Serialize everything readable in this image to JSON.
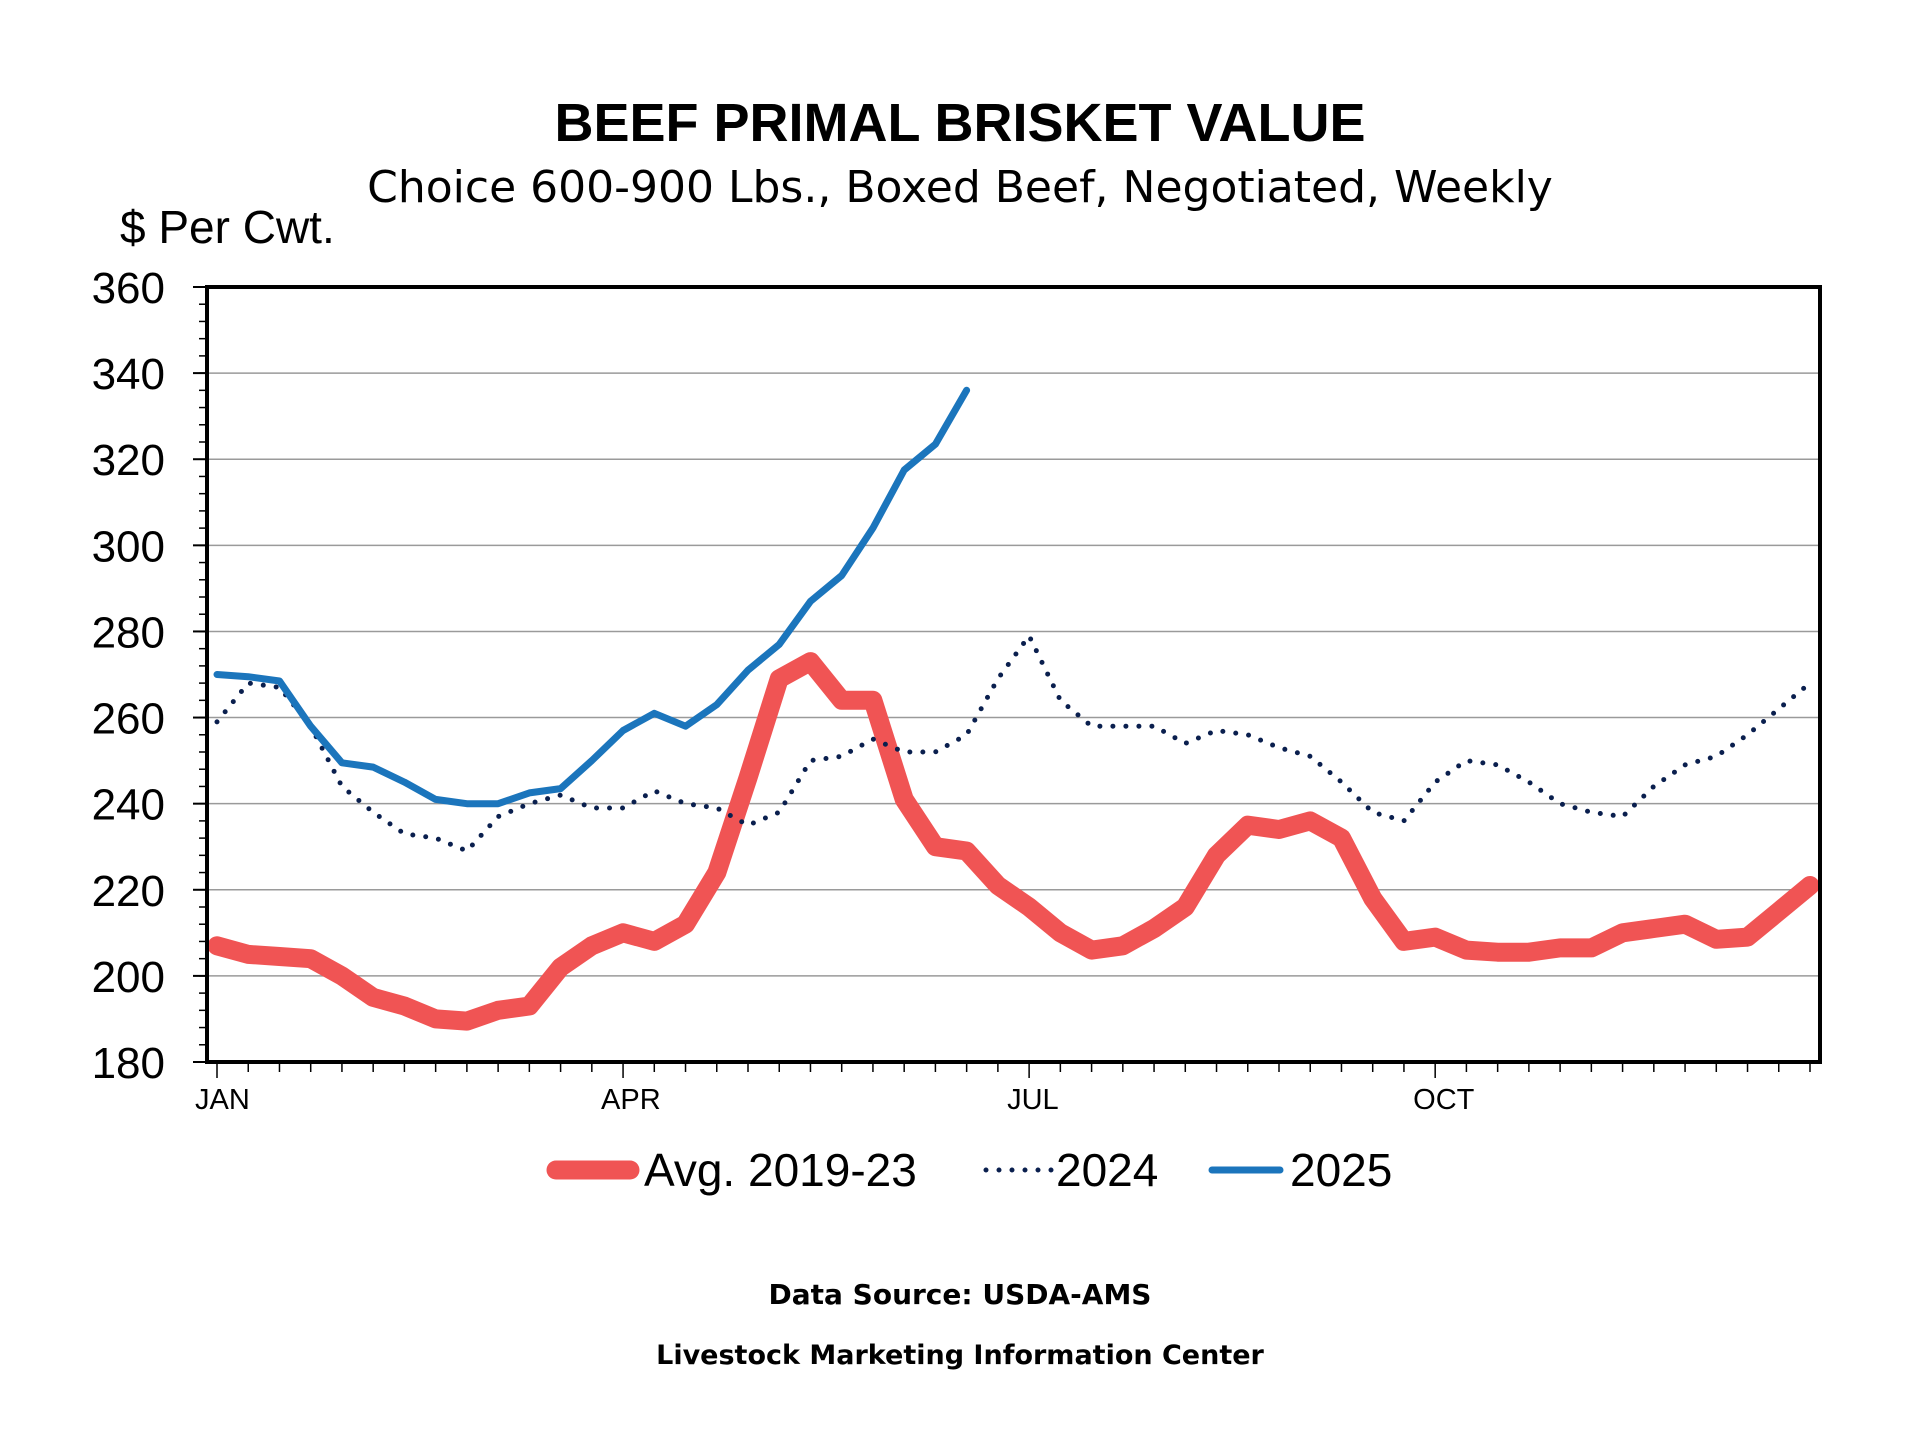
{
  "chart_data": {
    "type": "line",
    "title": "BEEF PRIMAL BRISKET VALUE",
    "subtitle": "Choice 600-900 Lbs., Boxed Beef, Negotiated, Weekly",
    "ylabel": "$ Per Cwt.",
    "ylim": [
      180,
      360
    ],
    "yticks": [
      "180",
      "200",
      "220",
      "240",
      "260",
      "280",
      "300",
      "320",
      "340",
      "360"
    ],
    "xlim": [
      1,
      52
    ],
    "xticks": [
      {
        "label": "JAN",
        "week": 1
      },
      {
        "label": "APR",
        "week": 14
      },
      {
        "label": "JUL",
        "week": 27
      },
      {
        "label": "OCT",
        "week": 40
      }
    ],
    "grid": true,
    "legend_position": "bottom",
    "series": [
      {
        "name": "Avg. 2019-23",
        "color": "#f05454",
        "style": "thick",
        "weeks": [
          1,
          2,
          3,
          4,
          5,
          6,
          7,
          8,
          9,
          10,
          11,
          12,
          13,
          14,
          15,
          16,
          17,
          18,
          19,
          20,
          21,
          22,
          23,
          24,
          25,
          26,
          27,
          28,
          29,
          30,
          31,
          32,
          33,
          34,
          35,
          36,
          37,
          38,
          39,
          40,
          41,
          42,
          43,
          44,
          45,
          46,
          47,
          48,
          49,
          50,
          51,
          52
        ],
        "values": [
          207,
          205,
          204.5,
          204,
          200,
          195,
          193,
          190,
          189.5,
          192,
          193,
          202,
          207,
          210,
          208,
          212,
          224,
          246,
          269,
          273,
          264,
          264,
          241,
          230,
          229,
          221,
          216,
          210,
          206,
          207,
          211,
          216,
          228,
          235,
          234,
          236,
          232,
          218,
          208,
          209,
          206,
          205.5,
          205.5,
          206.5,
          206.5,
          210,
          211,
          212,
          208.5,
          209,
          215,
          221
        ]
      },
      {
        "name": "2024",
        "color": "#0a1f4e",
        "style": "dotted",
        "weeks": [
          1,
          2,
          3,
          4,
          5,
          6,
          7,
          8,
          9,
          10,
          11,
          12,
          13,
          14,
          15,
          16,
          17,
          18,
          19,
          20,
          21,
          22,
          23,
          24,
          25,
          26,
          27,
          28,
          29,
          30,
          31,
          32,
          33,
          34,
          35,
          36,
          37,
          38,
          39,
          40,
          41,
          42,
          43,
          44,
          45,
          46,
          47,
          48,
          49,
          50,
          51,
          52
        ],
        "values": [
          259,
          268,
          267,
          258,
          244,
          238,
          233,
          232,
          229,
          237,
          240,
          242,
          239,
          239,
          243,
          240,
          239,
          235,
          238,
          250,
          251,
          255,
          252,
          252,
          256,
          269,
          279,
          264,
          258,
          258,
          258,
          254,
          257,
          256,
          253,
          251,
          245,
          238,
          236,
          245,
          250,
          249,
          245,
          240,
          238,
          237,
          244,
          249,
          251,
          256,
          262,
          268
        ]
      },
      {
        "name": "2025",
        "color": "#1b75bc",
        "style": "solid",
        "weeks": [
          1,
          2,
          3,
          4,
          5,
          6,
          7,
          8,
          9,
          10,
          11,
          12,
          13,
          14,
          15,
          16,
          17,
          18,
          19,
          20,
          21,
          22,
          23,
          24,
          25
        ],
        "values": [
          270,
          269.5,
          268.5,
          258,
          249.5,
          248.5,
          245,
          241,
          240,
          240,
          242.5,
          243.5,
          250,
          257,
          261,
          258,
          263,
          271,
          277,
          287,
          293,
          304,
          317.5,
          323.5,
          336
        ]
      }
    ]
  },
  "footer": {
    "source": "Data Source:  USDA-AMS",
    "center": "Livestock Marketing Information Center"
  }
}
